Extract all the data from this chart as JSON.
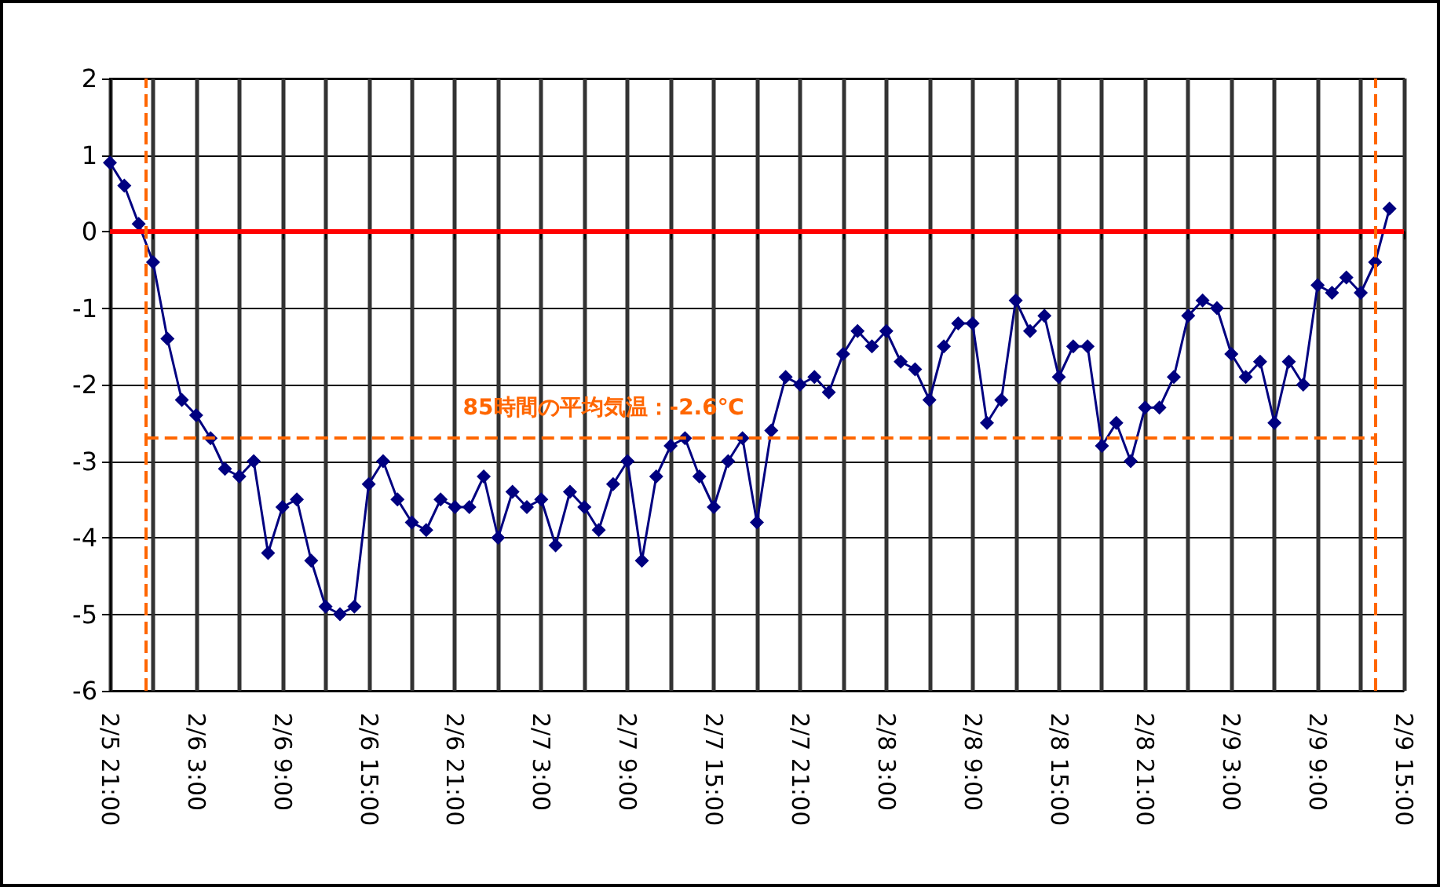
{
  "chart_data": {
    "type": "line",
    "x": [
      "--02-05T21:00",
      "--02-05T22:00",
      "--02-05T23:00",
      "--02-06T00:00",
      "--02-06T01:00",
      "--02-06T02:00",
      "--02-06T03:00",
      "--02-06T04:00",
      "--02-06T05:00",
      "--02-06T06:00",
      "--02-06T07:00",
      "--02-06T08:00",
      "--02-06T09:00",
      "--02-06T10:00",
      "--02-06T11:00",
      "--02-06T12:00",
      "--02-06T13:00",
      "--02-06T14:00",
      "--02-06T15:00",
      "--02-06T16:00",
      "--02-06T17:00",
      "--02-06T18:00",
      "--02-06T19:00",
      "--02-06T20:00",
      "--02-06T21:00",
      "--02-06T22:00",
      "--02-06T23:00",
      "--02-07T00:00",
      "--02-07T01:00",
      "--02-07T02:00",
      "--02-07T03:00",
      "--02-07T04:00",
      "--02-07T05:00",
      "--02-07T06:00",
      "--02-07T07:00",
      "--02-07T08:00",
      "--02-07T09:00",
      "--02-07T10:00",
      "--02-07T11:00",
      "--02-07T12:00",
      "--02-07T13:00",
      "--02-07T14:00",
      "--02-07T15:00",
      "--02-07T16:00",
      "--02-07T17:00",
      "--02-07T18:00",
      "--02-07T19:00",
      "--02-07T20:00",
      "--02-07T21:00",
      "--02-07T22:00",
      "--02-07T23:00",
      "--02-08T00:00",
      "--02-08T01:00",
      "--02-08T02:00",
      "--02-08T03:00",
      "--02-08T04:00",
      "--02-08T05:00",
      "--02-08T06:00",
      "--02-08T07:00",
      "--02-08T08:00",
      "--02-08T09:00",
      "--02-08T10:00",
      "--02-08T11:00",
      "--02-08T12:00",
      "--02-08T13:00",
      "--02-08T14:00",
      "--02-08T15:00",
      "--02-08T16:00",
      "--02-08T17:00",
      "--02-08T18:00",
      "--02-08T19:00",
      "--02-08T20:00",
      "--02-08T21:00",
      "--02-08T22:00",
      "--02-08T23:00",
      "--02-09T00:00",
      "--02-09T01:00",
      "--02-09T02:00",
      "--02-09T03:00",
      "--02-09T04:00",
      "--02-09T05:00",
      "--02-09T06:00",
      "--02-09T07:00",
      "--02-09T08:00",
      "--02-09T09:00",
      "--02-09T10:00",
      "--02-09T11:00",
      "--02-09T12:00",
      "--02-09T13:00",
      "--02-09T14:00"
    ],
    "series": [
      {
        "color": "#000080",
        "values": [
          0.9,
          0.6,
          0.1,
          -0.4,
          -1.4,
          -2.2,
          -2.4,
          -2.7,
          -3.1,
          -3.2,
          -3.0,
          -4.2,
          -3.6,
          -3.5,
          -4.3,
          -4.9,
          -5.0,
          -4.9,
          -3.3,
          -3.0,
          -3.5,
          -3.8,
          -3.9,
          -3.5,
          -3.6,
          -3.6,
          -3.2,
          -4.0,
          -3.4,
          -3.6,
          -3.5,
          -4.1,
          -3.4,
          -3.6,
          -3.9,
          -3.3,
          -3.0,
          -4.3,
          -3.2,
          -2.8,
          -2.7,
          -3.2,
          -3.6,
          -3.0,
          -2.7,
          -3.8,
          -2.6,
          -1.9,
          -2.0,
          -1.9,
          -2.1,
          -1.6,
          -1.3,
          -1.5,
          -1.3,
          -1.7,
          -1.8,
          -2.2,
          -1.5,
          -1.2,
          -1.2,
          -2.5,
          -2.2,
          -0.9,
          -1.3,
          -1.1,
          -1.9,
          -1.5,
          -1.5,
          -2.8,
          -2.5,
          -3.0,
          -2.3,
          -2.3,
          -1.9,
          -1.1,
          -0.9,
          -1.0,
          -1.6,
          -1.9,
          -1.7,
          -2.5,
          -1.7,
          -2.0,
          -0.7,
          -0.8,
          -0.6,
          -0.8,
          -0.4,
          0.3
        ]
      }
    ],
    "xlim": [
      "--02-05T21:00",
      "--02-09T15:00"
    ],
    "xticks": [
      {
        "value": "--02-05T21:00",
        "label": "2/5 21:00"
      },
      {
        "value": "--02-06T00:00",
        "label": null
      },
      {
        "value": "--02-06T03:00",
        "label": "2/6 3:00"
      },
      {
        "value": "--02-06T06:00",
        "label": null
      },
      {
        "value": "--02-06T09:00",
        "label": "2/6 9:00"
      },
      {
        "value": "--02-06T12:00",
        "label": null
      },
      {
        "value": "--02-06T15:00",
        "label": "2/6 15:00"
      },
      {
        "value": "--02-06T18:00",
        "label": null
      },
      {
        "value": "--02-06T21:00",
        "label": "2/6 21:00"
      },
      {
        "value": "--02-07T00:00",
        "label": null
      },
      {
        "value": "--02-07T03:00",
        "label": "2/7 3:00"
      },
      {
        "value": "--02-07T06:00",
        "label": null
      },
      {
        "value": "--02-07T09:00",
        "label": "2/7 9:00"
      },
      {
        "value": "--02-07T12:00",
        "label": null
      },
      {
        "value": "--02-07T15:00",
        "label": "2/7 15:00"
      },
      {
        "value": "--02-07T18:00",
        "label": null
      },
      {
        "value": "--02-07T21:00",
        "label": "2/7 21:00"
      },
      {
        "value": "--02-08T00:00",
        "label": null
      },
      {
        "value": "--02-08T03:00",
        "label": "2/8 3:00"
      },
      {
        "value": "--02-08T06:00",
        "label": null
      },
      {
        "value": "--02-08T09:00",
        "label": "2/8 9:00"
      },
      {
        "value": "--02-08T12:00",
        "label": null
      },
      {
        "value": "--02-08T15:00",
        "label": "2/8 15:00"
      },
      {
        "value": "--02-08T18:00",
        "label": null
      },
      {
        "value": "--02-08T21:00",
        "label": "2/8 21:00"
      },
      {
        "value": "--02-09T00:00",
        "label": null
      },
      {
        "value": "--02-09T03:00",
        "label": "2/9 3:00"
      },
      {
        "value": "--02-09T06:00",
        "label": null
      },
      {
        "value": "--02-09T09:00",
        "label": "2/9 9:00"
      },
      {
        "value": "--02-09T12:00",
        "label": null
      },
      {
        "value": "--02-09T15:00",
        "label": "2/9 15:00"
      }
    ],
    "ylim": [
      -6,
      2
    ],
    "yticks": [
      -6,
      -5,
      -4,
      -3,
      -2,
      -1,
      0,
      1,
      2
    ],
    "grid": true,
    "marker": "diamond",
    "ref_lines": [
      {
        "axis": "y",
        "value": 0,
        "color": "#ff0000",
        "line_style": "solid"
      },
      {
        "axis": "x",
        "value": "--02-05T23:30",
        "color": "#ff6600",
        "line_style": "dashed"
      },
      {
        "axis": "x",
        "value": "--02-09T13:00",
        "color": "#ff6600",
        "line_style": "dashed"
      },
      {
        "axis": "y",
        "value": -2.7,
        "label": "85時間の平均気温：-2.6℃",
        "color": "#ff6600",
        "line_style": "dashed"
      }
    ]
  }
}
